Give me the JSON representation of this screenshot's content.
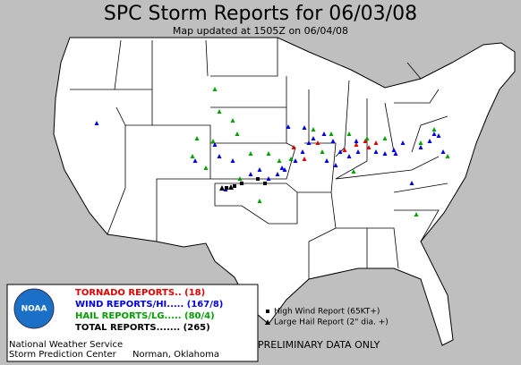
{
  "header": {
    "title": "SPC Storm Reports for 06/03/08",
    "subtitle": "Map updated at 1505Z on 06/04/08"
  },
  "legend": {
    "logo": "NOAA",
    "items": [
      {
        "label": "TORNADO REPORTS.. (18)",
        "color": "#e00000"
      },
      {
        "label": "WIND REPORTS/HI..... (167/8)",
        "color": "#0000e0"
      },
      {
        "label": "HAIL REPORTS/LG..... (80/4)",
        "color": "#00a000"
      },
      {
        "label": "TOTAL REPORTS....... (265)",
        "color": "#000000"
      }
    ],
    "symbols": [
      "High Wind Report (65KT+)",
      "Large Hail Report (2\" dia. +)"
    ]
  },
  "footer": {
    "agency": "National Weather Service",
    "center": "Storm Prediction Center",
    "location": "Norman, Oklahoma",
    "note": "PRELIMINARY DATA ONLY"
  }
}
